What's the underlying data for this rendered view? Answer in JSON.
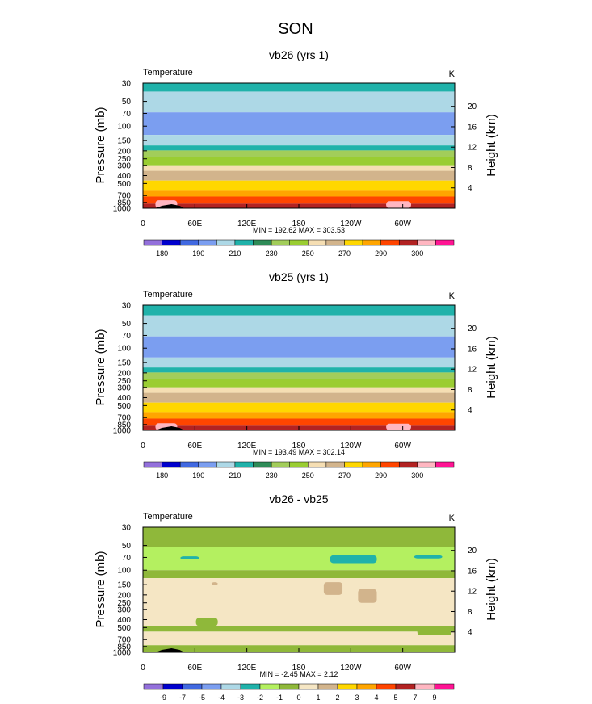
{
  "figure": {
    "title": "SON"
  },
  "colors": {
    "temperature_scale": [
      "#9370db",
      "#0000cd",
      "#4169e1",
      "#7b9ef0",
      "#add8e6",
      "#20b2aa",
      "#2e8b57",
      "#a2cd5a",
      "#9acd32",
      "#f5deb3",
      "#d2b48c",
      "#ffd700",
      "#ffa500",
      "#ff4500",
      "#b22222",
      "#ffb6c1",
      "#ff1493"
    ],
    "difference_scale": [
      "#9370db",
      "#0000cd",
      "#4169e1",
      "#7b9ef0",
      "#add8e6",
      "#20b2aa",
      "#b4f060",
      "#8fb83a",
      "#f5e6c4",
      "#d2b48c",
      "#ffd700",
      "#ffa500",
      "#ff4500",
      "#b22222",
      "#ffb6c1",
      "#ff1493"
    ],
    "terrain": "#000000"
  },
  "chart_data": [
    {
      "type": "heatmap",
      "title": "vb26 (yrs 1)",
      "left_label": "Temperature",
      "right_label": "K",
      "xlabel": "",
      "ylabel": "Pressure (mb)",
      "y2label": "Height (km)",
      "x_ticks": [
        "0",
        "60E",
        "120E",
        "180",
        "120W",
        "60W"
      ],
      "y_ticks": [
        "30",
        "50",
        "70",
        "100",
        "150",
        "200",
        "250",
        "300",
        "400",
        "500",
        "700",
        "850",
        "1000"
      ],
      "y2_ticks": [
        "20",
        "16",
        "12",
        "8",
        "4"
      ],
      "stats": "MIN = 192.62  MAX = 303.53",
      "min": 192.62,
      "max": 303.53,
      "colorbar_labels": [
        "180",
        "190",
        "210",
        "230",
        "250",
        "270",
        "290",
        "300"
      ],
      "bands": [
        {
          "p_top": 30,
          "p_bot": 38,
          "color_index": 5
        },
        {
          "p_top": 38,
          "p_bot": 68,
          "color_index": 4
        },
        {
          "p_top": 68,
          "p_bot": 128,
          "color_index": 3
        },
        {
          "p_top": 128,
          "p_bot": 172,
          "color_index": 4
        },
        {
          "p_top": 172,
          "p_bot": 198,
          "color_index": 5
        },
        {
          "p_top": 198,
          "p_bot": 240,
          "color_index": 7
        },
        {
          "p_top": 240,
          "p_bot": 300,
          "color_index": 8
        },
        {
          "p_top": 300,
          "p_bot": 350,
          "color_index": 9
        },
        {
          "p_top": 350,
          "p_bot": 460,
          "color_index": 10
        },
        {
          "p_top": 460,
          "p_bot": 600,
          "color_index": 11
        },
        {
          "p_top": 600,
          "p_bot": 720,
          "color_index": 12
        },
        {
          "p_top": 720,
          "p_bot": 880,
          "color_index": 13
        },
        {
          "p_top": 880,
          "p_bot": 1000,
          "color_index": 14
        }
      ],
      "patches": [
        {
          "x0": 0.04,
          "x1": 0.11,
          "p_top": 800,
          "p_bot": 1000,
          "color_index": 15
        },
        {
          "x0": 0.78,
          "x1": 0.86,
          "p_top": 820,
          "p_bot": 1000,
          "color_index": 15
        }
      ]
    },
    {
      "type": "heatmap",
      "title": "vb25 (yrs 1)",
      "left_label": "Temperature",
      "right_label": "K",
      "xlabel": "",
      "ylabel": "Pressure (mb)",
      "y2label": "Height (km)",
      "x_ticks": [
        "0",
        "60E",
        "120E",
        "180",
        "120W",
        "60W"
      ],
      "y_ticks": [
        "30",
        "50",
        "70",
        "100",
        "150",
        "200",
        "250",
        "300",
        "400",
        "500",
        "700",
        "850",
        "1000"
      ],
      "y2_ticks": [
        "20",
        "16",
        "12",
        "8",
        "4"
      ],
      "stats": "MIN = 193.49  MAX = 302.14",
      "min": 193.49,
      "max": 302.14,
      "colorbar_labels": [
        "180",
        "190",
        "210",
        "230",
        "250",
        "270",
        "290",
        "300"
      ],
      "bands": [
        {
          "p_top": 30,
          "p_bot": 40,
          "color_index": 5
        },
        {
          "p_top": 40,
          "p_bot": 72,
          "color_index": 4
        },
        {
          "p_top": 72,
          "p_bot": 130,
          "color_index": 3
        },
        {
          "p_top": 130,
          "p_bot": 172,
          "color_index": 4
        },
        {
          "p_top": 172,
          "p_bot": 198,
          "color_index": 5
        },
        {
          "p_top": 198,
          "p_bot": 240,
          "color_index": 7
        },
        {
          "p_top": 240,
          "p_bot": 300,
          "color_index": 8
        },
        {
          "p_top": 300,
          "p_bot": 350,
          "color_index": 9
        },
        {
          "p_top": 350,
          "p_bot": 460,
          "color_index": 10
        },
        {
          "p_top": 460,
          "p_bot": 600,
          "color_index": 11
        },
        {
          "p_top": 600,
          "p_bot": 720,
          "color_index": 12
        },
        {
          "p_top": 720,
          "p_bot": 880,
          "color_index": 13
        },
        {
          "p_top": 880,
          "p_bot": 1000,
          "color_index": 14
        }
      ],
      "patches": [
        {
          "x0": 0.04,
          "x1": 0.11,
          "p_top": 820,
          "p_bot": 1000,
          "color_index": 15
        },
        {
          "x0": 0.78,
          "x1": 0.86,
          "p_top": 830,
          "p_bot": 1000,
          "color_index": 15
        }
      ]
    },
    {
      "type": "heatmap",
      "title": "vb26 - vb25",
      "left_label": "Temperature",
      "right_label": "K",
      "xlabel": "",
      "ylabel": "Pressure (mb)",
      "y2label": "Height (km)",
      "x_ticks": [
        "0",
        "60E",
        "120E",
        "180",
        "120W",
        "60W"
      ],
      "y_ticks": [
        "30",
        "50",
        "70",
        "100",
        "150",
        "200",
        "250",
        "300",
        "400",
        "500",
        "700",
        "850",
        "1000"
      ],
      "y2_ticks": [
        "20",
        "16",
        "12",
        "8",
        "4"
      ],
      "stats": "MIN = -2.45  MAX =  2.12",
      "min": -2.45,
      "max": 2.12,
      "colorbar_labels": [
        "-9",
        "-7",
        "-5",
        "-4",
        "-3",
        "-2",
        "-1",
        "0",
        "1",
        "2",
        "3",
        "4",
        "5",
        "7",
        "9"
      ],
      "bands": [
        {
          "p_top": 30,
          "p_bot": 52,
          "color_index": 7
        },
        {
          "p_top": 52,
          "p_bot": 100,
          "color_index": 6
        },
        {
          "p_top": 100,
          "p_bot": 125,
          "color_index": 7
        },
        {
          "p_top": 125,
          "p_bot": 480,
          "color_index": 8
        },
        {
          "p_top": 480,
          "p_bot": 560,
          "color_index": 7
        },
        {
          "p_top": 560,
          "p_bot": 820,
          "color_index": 8
        },
        {
          "p_top": 820,
          "p_bot": 1000,
          "color_index": 7
        }
      ],
      "patches": [
        {
          "x0": 0.12,
          "x1": 0.18,
          "p_top": 68,
          "p_bot": 74,
          "color_index": 5
        },
        {
          "x0": 0.6,
          "x1": 0.75,
          "p_top": 66,
          "p_bot": 82,
          "color_index": 5
        },
        {
          "x0": 0.87,
          "x1": 0.96,
          "p_top": 66,
          "p_bot": 72,
          "color_index": 5
        },
        {
          "x0": 0.22,
          "x1": 0.24,
          "p_top": 140,
          "p_bot": 152,
          "color_index": 9
        },
        {
          "x0": 0.58,
          "x1": 0.64,
          "p_top": 140,
          "p_bot": 200,
          "color_index": 9
        },
        {
          "x0": 0.69,
          "x1": 0.75,
          "p_top": 170,
          "p_bot": 250,
          "color_index": 9
        },
        {
          "x0": 0.17,
          "x1": 0.24,
          "p_top": 380,
          "p_bot": 480,
          "color_index": 7
        },
        {
          "x0": 0.88,
          "x1": 0.99,
          "p_top": 480,
          "p_bot": 620,
          "color_index": 7
        }
      ]
    }
  ],
  "panels_geometry_note": "none"
}
